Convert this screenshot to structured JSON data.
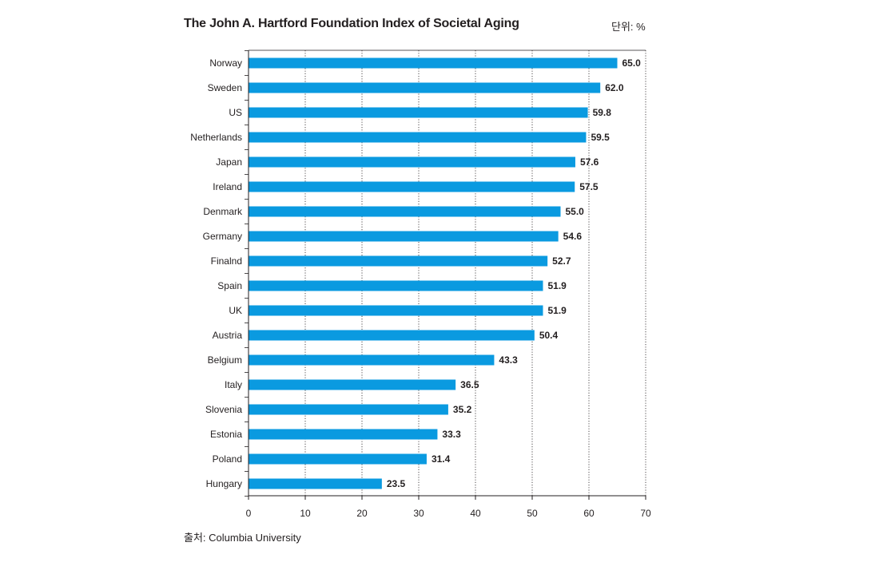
{
  "unit_label": "단위: %",
  "source_label": "출처: Columbia University",
  "colors": {
    "bar": "#0a9ae0",
    "axis": "#231f20",
    "grid": "#231f20"
  },
  "chart_data": {
    "type": "bar",
    "orientation": "horizontal",
    "title": "The John A. Hartford Foundation Index of Societal Aging",
    "xlabel": "",
    "ylabel": "",
    "xlim": [
      0,
      70
    ],
    "xticks": [
      0,
      10,
      20,
      30,
      40,
      50,
      60,
      70
    ],
    "grid": true,
    "categories": [
      "Norway",
      "Sweden",
      "US",
      "Netherlands",
      "Japan",
      "Ireland",
      "Denmark",
      "Germany",
      "Finalnd",
      "Spain",
      "UK",
      "Austria",
      "Belgium",
      "Italy",
      "Slovenia",
      "Estonia",
      "Poland",
      "Hungary"
    ],
    "values": [
      65.0,
      62.0,
      59.8,
      59.5,
      57.6,
      57.5,
      55.0,
      54.6,
      52.7,
      51.9,
      51.9,
      50.4,
      43.3,
      36.5,
      35.2,
      33.3,
      31.4,
      23.5
    ],
    "value_labels": [
      "65.0",
      "62.0",
      "59.8",
      "59.5",
      "57.6",
      "57.5",
      "55.0",
      "54.6",
      "52.7",
      "51.9",
      "51.9",
      "50.4",
      "43.3",
      "36.5",
      "35.2",
      "33.3",
      "31.4",
      "23.5"
    ]
  }
}
